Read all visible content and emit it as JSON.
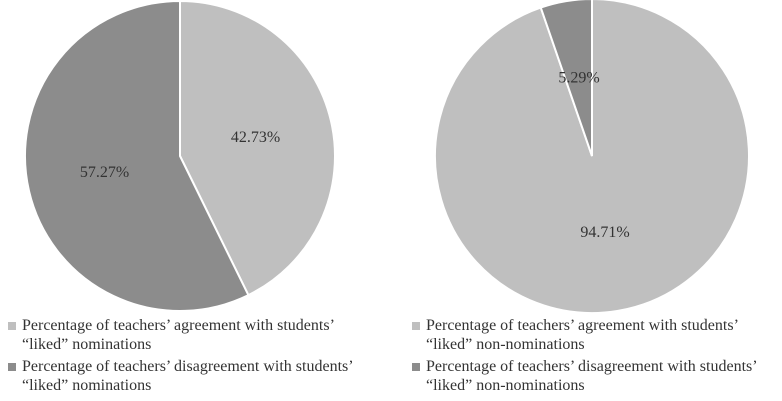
{
  "chart_data": [
    {
      "type": "pie",
      "series": [
        {
          "name": "Percentage of teachers’ agreement with students’ “liked” nominations",
          "color": "#bfbfbf",
          "values": [
            42.73
          ],
          "value_labels": [
            "42.73%"
          ]
        },
        {
          "name": "Percentage of teachers’ disagreement with students’ “liked” nominations",
          "color": "#8c8c8c",
          "values": [
            57.27
          ],
          "value_labels": [
            "57.27%"
          ]
        }
      ]
    },
    {
      "type": "pie",
      "series": [
        {
          "name": "Percentage of teachers’ agreement with students’ “liked” non-nominations",
          "color": "#bfbfbf",
          "values": [
            94.71
          ],
          "value_labels": [
            "94.71%"
          ]
        },
        {
          "name": "Percentage of teachers’ disagreement with students’ “liked” non-nominations",
          "color": "#8c8c8c",
          "values": [
            5.29
          ],
          "value_labels": [
            "5.29%"
          ]
        }
      ]
    }
  ]
}
